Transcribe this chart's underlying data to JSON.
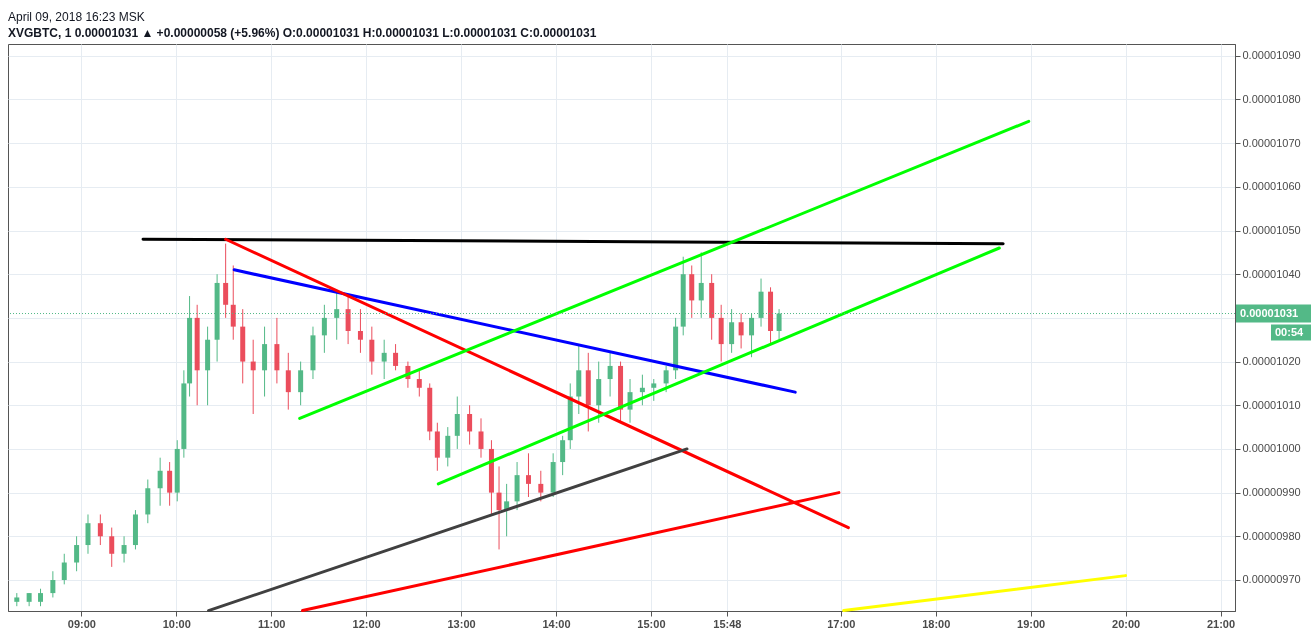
{
  "chart_data": {
    "type": "candlestick",
    "title": "April 09, 2018 16:23 MSK",
    "subtitle": "XVGBTC, 1  0.00001031 ▲ +0.00000058 (+5.96%) O:0.00001031 H:0.00001031 L:0.00001031 C:0.00001031",
    "x": [
      8.32,
      8.45,
      8.57,
      8.7,
      8.82,
      8.95,
      9.07,
      9.2,
      9.32,
      9.45,
      9.57,
      9.7,
      9.83,
      9.93,
      10.01,
      10.08,
      10.14,
      10.22,
      10.33,
      10.43,
      10.52,
      10.6,
      10.7,
      10.81,
      10.93,
      11.06,
      11.18,
      11.31,
      11.44,
      11.56,
      11.69,
      11.81,
      11.94,
      12.06,
      12.19,
      12.31,
      12.44,
      12.56,
      12.67,
      12.75,
      12.86,
      12.96,
      13.09,
      13.21,
      13.32,
      13.4,
      13.48,
      13.59,
      13.71,
      13.84,
      13.97,
      14.07,
      14.15,
      14.24,
      14.34,
      14.45,
      14.57,
      14.68,
      14.78,
      14.91,
      15.03,
      15.16,
      15.26,
      15.34,
      15.43,
      15.53,
      15.64,
      15.74,
      15.85,
      15.95,
      16.06,
      16.16,
      16.26,
      16.35
    ],
    "ohlc": [
      [
        9.65e-06,
        9.67e-06,
        9.64e-06,
        9.66e-06
      ],
      [
        9.65e-06,
        9.67e-06,
        9.64e-06,
        9.67e-06
      ],
      [
        9.65e-06,
        9.68e-06,
        9.64e-06,
        9.67e-06
      ],
      [
        9.67e-06,
        9.72e-06,
        9.66e-06,
        9.7e-06
      ],
      [
        9.7e-06,
        9.76e-06,
        9.69e-06,
        9.74e-06
      ],
      [
        9.74e-06,
        9.8e-06,
        9.72e-06,
        9.78e-06
      ],
      [
        9.78e-06,
        9.85e-06,
        9.76e-06,
        9.83e-06
      ],
      [
        9.83e-06,
        9.85e-06,
        9.78e-06,
        9.8e-06
      ],
      [
        9.8e-06,
        9.82e-06,
        9.73e-06,
        9.76e-06
      ],
      [
        9.76e-06,
        9.8e-06,
        9.74e-06,
        9.78e-06
      ],
      [
        9.78e-06,
        9.86e-06,
        9.77e-06,
        9.85e-06
      ],
      [
        9.85e-06,
        9.93e-06,
        9.83e-06,
        9.91e-06
      ],
      [
        9.91e-06,
        9.98e-06,
        9.87e-06,
        9.95e-06
      ],
      [
        9.95e-06,
        9.97e-06,
        9.87e-06,
        9.9e-06
      ],
      [
        9.9e-06,
        1.002e-05,
        9.88e-06,
        1e-05
      ],
      [
        1e-05,
        1.018e-05,
        9.98e-06,
        1.015e-05
      ],
      [
        1.015e-05,
        1.035e-05,
        1.012e-05,
        1.03e-05
      ],
      [
        1.03e-05,
        1.033e-05,
        1.01e-05,
        1.018e-05
      ],
      [
        1.018e-05,
        1.028e-05,
        1.01e-05,
        1.025e-05
      ],
      [
        1.025e-05,
        1.04e-05,
        1.02e-05,
        1.038e-05
      ],
      [
        1.038e-05,
        1.047e-05,
        1.03e-05,
        1.033e-05
      ],
      [
        1.033e-05,
        1.042e-05,
        1.025e-05,
        1.028e-05
      ],
      [
        1.028e-05,
        1.032e-05,
        1.015e-05,
        1.02e-05
      ],
      [
        1.02e-05,
        1.025e-05,
        1.008e-05,
        1.018e-05
      ],
      [
        1.018e-05,
        1.028e-05,
        1.012e-05,
        1.024e-05
      ],
      [
        1.024e-05,
        1.03e-05,
        1.015e-05,
        1.018e-05
      ],
      [
        1.018e-05,
        1.022e-05,
        1.009e-05,
        1.013e-05
      ],
      [
        1.013e-05,
        1.02e-05,
        1.01e-05,
        1.018e-05
      ],
      [
        1.018e-05,
        1.028e-05,
        1.016e-05,
        1.026e-05
      ],
      [
        1.026e-05,
        1.033e-05,
        1.022e-05,
        1.03e-05
      ],
      [
        1.03e-05,
        1.036e-05,
        1.025e-05,
        1.032e-05
      ],
      [
        1.032e-05,
        1.035e-05,
        1.024e-05,
        1.027e-05
      ],
      [
        1.027e-05,
        1.032e-05,
        1.022e-05,
        1.025e-05
      ],
      [
        1.025e-05,
        1.028e-05,
        1.017e-05,
        1.02e-05
      ],
      [
        1.02e-05,
        1.025e-05,
        1.016e-05,
        1.022e-05
      ],
      [
        1.022e-05,
        1.024e-05,
        1.018e-05,
        1.019e-05
      ],
      [
        1.019e-05,
        1.02e-05,
        1.014e-05,
        1.016e-05
      ],
      [
        1.016e-05,
        1.018e-05,
        1.012e-05,
        1.014e-05
      ],
      [
        1.014e-05,
        1.015e-05,
        1.002e-05,
        1.004e-05
      ],
      [
        1.004e-05,
        1.006e-05,
        9.95e-06,
        9.98e-06
      ],
      [
        9.98e-06,
        1.005e-05,
        9.96e-06,
        1.003e-05
      ],
      [
        1.003e-05,
        1.012e-05,
        1e-05,
        1.008e-05
      ],
      [
        1.008e-05,
        1.01e-05,
        1.001e-05,
        1.004e-05
      ],
      [
        1.004e-05,
        1.007e-05,
        9.98e-06,
        1e-05
      ],
      [
        1e-05,
        1.002e-05,
        9.85e-06,
        9.9e-06
      ],
      [
        9.9e-06,
        9.96e-06,
        9.77e-06,
        9.86e-06
      ],
      [
        9.86e-06,
        9.92e-06,
        9.8e-06,
        9.88e-06
      ],
      [
        9.88e-06,
        9.97e-06,
        9.86e-06,
        9.94e-06
      ],
      [
        9.94e-06,
        9.99e-06,
        9.89e-06,
        9.92e-06
      ],
      [
        9.92e-06,
        9.95e-06,
        9.88e-06,
        9.9e-06
      ],
      [
        9.9e-06,
        9.99e-06,
        9.89e-06,
        9.97e-06
      ],
      [
        9.97e-06,
        1.003e-05,
        9.94e-06,
        1.002e-05
      ],
      [
        1.002e-05,
        1.015e-05,
        1e-05,
        1.012e-05
      ],
      [
        1.012e-05,
        1.024e-05,
        1.008e-05,
        1.018e-05
      ],
      [
        1.018e-05,
        1.022e-05,
        1.004e-05,
        1.01e-05
      ],
      [
        1.01e-05,
        1.02e-05,
        1.006e-05,
        1.016e-05
      ],
      [
        1.016e-05,
        1.022e-05,
        1.012e-05,
        1.019e-05
      ],
      [
        1.019e-05,
        1.02e-05,
        1.006e-05,
        1.009e-05
      ],
      [
        1.009e-05,
        1.016e-05,
        1.006e-05,
        1.013e-05
      ],
      [
        1.013e-05,
        1.017e-05,
        1.01e-05,
        1.014e-05
      ],
      [
        1.014e-05,
        1.016e-05,
        1.011e-05,
        1.015e-05
      ],
      [
        1.015e-05,
        1.019e-05,
        1.013e-05,
        1.018e-05
      ],
      [
        1.018e-05,
        1.03e-05,
        1.016e-05,
        1.028e-05
      ],
      [
        1.028e-05,
        1.044e-05,
        1.026e-05,
        1.04e-05
      ],
      [
        1.04e-05,
        1.042e-05,
        1.03e-05,
        1.034e-05
      ],
      [
        1.034e-05,
        1.045e-05,
        1.03e-05,
        1.038e-05
      ],
      [
        1.038e-05,
        1.04e-05,
        1.025e-05,
        1.03e-05
      ],
      [
        1.03e-05,
        1.033e-05,
        1.02e-05,
        1.024e-05
      ],
      [
        1.024e-05,
        1.032e-05,
        1.022e-05,
        1.029e-05
      ],
      [
        1.029e-05,
        1.031e-05,
        1.023e-05,
        1.026e-05
      ],
      [
        1.026e-05,
        1.031e-05,
        1.021e-05,
        1.03e-05
      ],
      [
        1.03e-05,
        1.039e-05,
        1.028e-05,
        1.036e-05
      ],
      [
        1.036e-05,
        1.037e-05,
        1.024e-05,
        1.027e-05
      ],
      [
        1.027e-05,
        1.032e-05,
        1.025e-05,
        1.031e-05
      ]
    ],
    "series": [
      {
        "type": "line",
        "color": "#000000",
        "x": [
          9.65,
          18.71
        ],
        "values": [
          1.048e-05,
          1.047e-05
        ]
      },
      {
        "type": "line",
        "color": "#0000ff",
        "x": [
          10.61,
          16.52
        ],
        "values": [
          1.041e-05,
          1.013e-05
        ]
      },
      {
        "type": "line",
        "color": "#ff0000",
        "x": [
          10.52,
          17.08
        ],
        "values": [
          1.048e-05,
          9.82e-06
        ]
      },
      {
        "type": "line",
        "color": "#ff0000",
        "x": [
          11.33,
          16.98
        ],
        "values": [
          9.63e-06,
          9.9e-06
        ]
      },
      {
        "type": "line",
        "color": "#00ff00",
        "x": [
          11.3,
          18.98
        ],
        "values": [
          1.007e-05,
          1.075e-05
        ]
      },
      {
        "type": "line",
        "color": "#00ff00",
        "x": [
          12.76,
          18.67
        ],
        "values": [
          9.92e-06,
          1.046e-05
        ]
      },
      {
        "type": "line",
        "color": "#404040",
        "x": [
          10.34,
          15.38
        ],
        "values": [
          9.63e-06,
          1e-05
        ]
      },
      {
        "type": "line",
        "color": "#ffff00",
        "x": [
          17.03,
          20.0
        ],
        "values": [
          9.63e-06,
          9.71e-06
        ]
      }
    ],
    "xlim": [
      8.28,
      21.1
    ],
    "xticks": [
      {
        "value": 9,
        "label": "09:00"
      },
      {
        "value": 10,
        "label": "10:00"
      },
      {
        "value": 11,
        "label": "11:00"
      },
      {
        "value": 12,
        "label": "12:00"
      },
      {
        "value": 13,
        "label": "13:00"
      },
      {
        "value": 14,
        "label": "14:00"
      },
      {
        "value": 15,
        "label": "15:00"
      },
      {
        "value": 15.8,
        "label": "15:48"
      },
      {
        "value": 17,
        "label": "17:00"
      },
      {
        "value": 18,
        "label": "18:00"
      },
      {
        "value": 19,
        "label": "19:00"
      },
      {
        "value": 20,
        "label": "20:00"
      },
      {
        "value": 21,
        "label": "21:00"
      }
    ],
    "ylim": [
      9.629e-06,
      1.0927e-05
    ],
    "yticks": [
      {
        "value": 9.7e-06,
        "label": "0.00000970"
      },
      {
        "value": 9.8e-06,
        "label": "0.00000980"
      },
      {
        "value": 9.9e-06,
        "label": "0.00000990"
      },
      {
        "value": 1e-05,
        "label": "0.00001000"
      },
      {
        "value": 1.01e-05,
        "label": "0.00001010"
      },
      {
        "value": 1.02e-05,
        "label": "0.00001020"
      },
      {
        "value": 1.03e-05,
        "label": null
      },
      {
        "value": 1.04e-05,
        "label": "0.00001040"
      },
      {
        "value": 1.05e-05,
        "label": "0.00001050"
      },
      {
        "value": 1.06e-05,
        "label": "0.00001060"
      },
      {
        "value": 1.07e-05,
        "label": "0.00001070"
      },
      {
        "value": 1.08e-05,
        "label": "0.00001080"
      },
      {
        "value": 1.09e-05,
        "label": "0.00001090"
      }
    ],
    "grid": true,
    "ref_lines": [
      {
        "axis": "y",
        "value": 1.031e-05,
        "label": "0.00001031",
        "color": "#53b987",
        "line_style": "dotted"
      }
    ],
    "annotations": [
      "00:54"
    ]
  }
}
